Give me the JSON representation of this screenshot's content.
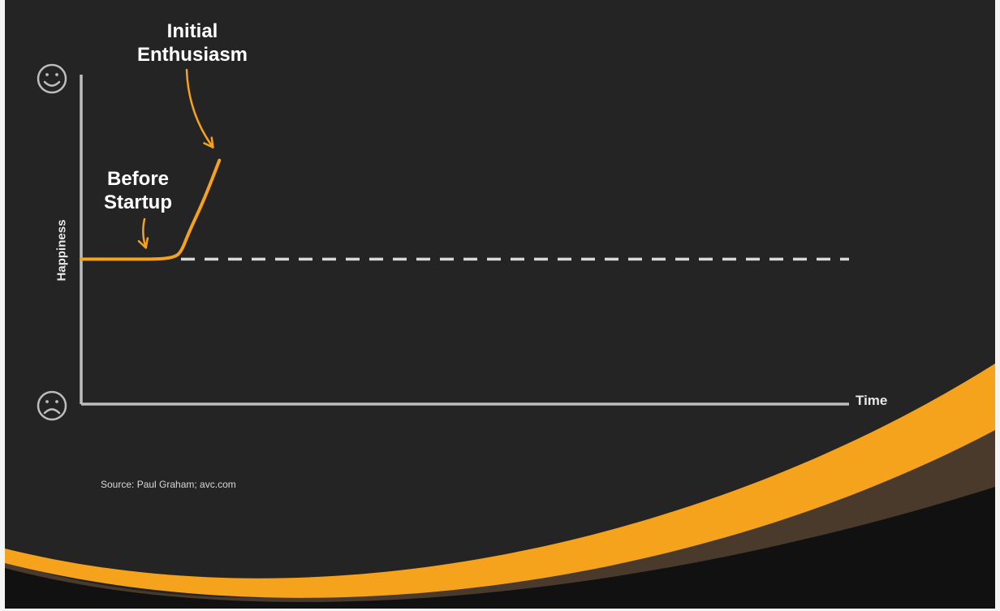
{
  "colors": {
    "background": "#242424",
    "accent": "#f5a21d",
    "axis": "#bdbdbd",
    "baseline": "#d9d9d9",
    "text": "#ffffff",
    "swoosh_dark": "#4a3a2c",
    "swoosh_bottom": "#111111"
  },
  "icons": {
    "top": "smiley-face-icon",
    "bottom": "frowning-face-icon"
  },
  "chart_data": {
    "type": "line",
    "title": "",
    "xlabel": "Time",
    "ylabel": "Happiness",
    "xlim": [
      0,
      100
    ],
    "ylim": [
      0,
      100
    ],
    "grid": false,
    "legend": "none",
    "series": [
      {
        "x": [
          0,
          6,
          10,
          12,
          13,
          14,
          16,
          18
        ],
        "values": [
          44,
          44,
          44,
          44.5,
          46,
          52,
          62,
          74
        ]
      }
    ],
    "baseline": {
      "y": 44,
      "x_start": 13,
      "x_end": 100,
      "style": "dashed"
    },
    "annotations": [
      {
        "id": "before",
        "lines": [
          "Before",
          "Startup"
        ],
        "target_x": 8,
        "target_y": 44
      },
      {
        "id": "initial",
        "lines": [
          "Initial",
          "Enthusiasm"
        ],
        "target_x": 17.8,
        "target_y": 74
      }
    ]
  },
  "source": "Source: Paul Graham; avc.com"
}
